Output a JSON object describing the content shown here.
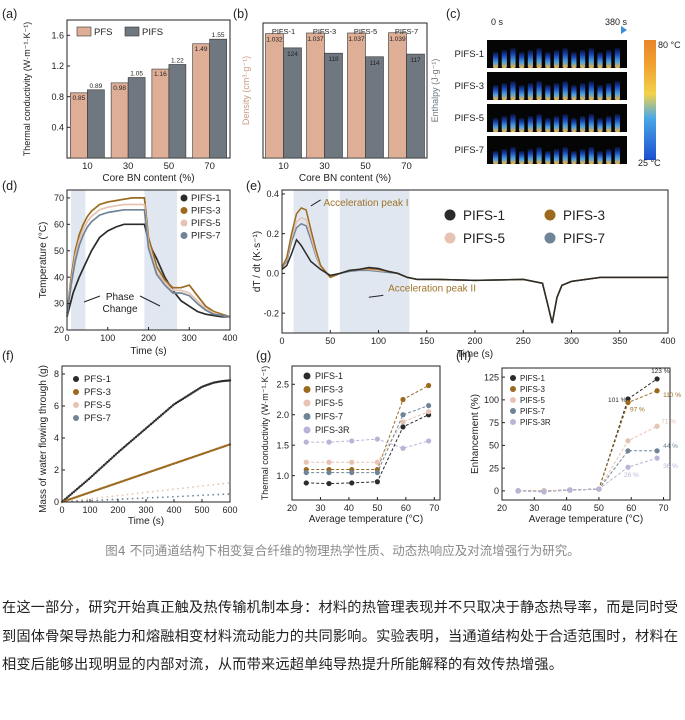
{
  "figure": {
    "caption": "图4 不同通道结构下相变复合纤维的物理热学性质、动态热响应及对流增强行为研究。",
    "colors": {
      "pfs_bar": "#dfae96",
      "pifs_bar": "#6f7880",
      "pifs1": "#2b2b2b",
      "pifs3": "#9b6a1e",
      "pifs5": "#e6c3b2",
      "pifs7": "#6f8597",
      "pifs3r": "#b7b6d8",
      "highlight": "#c6d3e6"
    }
  },
  "chart_data": [
    {
      "panel": "a",
      "type": "bar",
      "panel_label": "(a)",
      "xlabel": "Core BN content (%)",
      "ylabel": "Thermal conductivity (W·m⁻¹·K⁻¹)",
      "categories": [
        "10",
        "30",
        "50",
        "70"
      ],
      "ylim": [
        0,
        1.8
      ],
      "yticks": [
        "0.4",
        "0.8",
        "1.2",
        "1.6"
      ],
      "series": [
        {
          "name": "PFS",
          "values": [
            0.85,
            0.98,
            1.16,
            1.49
          ],
          "labels": [
            "0.85",
            "0.98",
            "1.16",
            "1.49"
          ]
        },
        {
          "name": "PIFS",
          "values": [
            0.89,
            1.05,
            1.22,
            1.55
          ],
          "labels": [
            "0.89",
            "1.05",
            "1.22",
            "1.55"
          ]
        }
      ]
    },
    {
      "panel": "b",
      "type": "bar",
      "panel_label": "(b)",
      "xlabel": "Core BN content (%)",
      "ylabel_left": "Density (cm³·g⁻¹)",
      "ylabel_right": "Enthalpy (J·g⁻¹)",
      "categories": [
        "10",
        "30",
        "50",
        "70"
      ],
      "group_labels": [
        "PIFS-1",
        "PIFS-3",
        "PIFS-5",
        "PIFS-7"
      ],
      "series": [
        {
          "name": "Density",
          "values": [
            1.032,
            1.037,
            1.037,
            1.039
          ],
          "labels": [
            "1.032",
            "1.037",
            "1.037",
            "1.039"
          ]
        },
        {
          "name": "Enthalpy",
          "values": [
            124,
            118,
            114,
            117
          ],
          "labels": [
            "124",
            "118",
            "114",
            "117"
          ]
        }
      ]
    },
    {
      "panel": "c",
      "type": "heatmap",
      "panel_label": "(c)",
      "time_start": "0 s",
      "time_end": "380 s",
      "rows": [
        "PIFS-1",
        "PIFS-3",
        "PIFS-5",
        "PIFS-7"
      ],
      "colorbar_max": "80 °C",
      "colorbar_min": "25 °C"
    },
    {
      "panel": "d",
      "type": "line",
      "panel_label": "(d)",
      "xlabel": "Time (s)",
      "ylabel": "Temperature (°C)",
      "xlim": [
        0,
        400
      ],
      "ylim": [
        20,
        73
      ],
      "xticks": [
        "0",
        "100",
        "200",
        "300",
        "400"
      ],
      "yticks": [
        "20",
        "30",
        "40",
        "50",
        "60",
        "70"
      ],
      "annotation": "Phase Change",
      "legend": [
        "PIFS-1",
        "PIFS-3",
        "PIFS-5",
        "PIFS-7"
      ],
      "series": [
        {
          "name": "PIFS-1",
          "x": [
            0,
            15,
            30,
            45,
            60,
            80,
            100,
            120,
            140,
            160,
            180,
            190,
            200,
            210,
            220,
            240,
            260,
            280,
            300,
            320,
            340,
            360,
            380,
            400
          ],
          "y": [
            25,
            34,
            40,
            45,
            50,
            55,
            57.5,
            59,
            60,
            60,
            60,
            60,
            54,
            50,
            47,
            40,
            35,
            31,
            29,
            27,
            26,
            25.5,
            25,
            25
          ]
        },
        {
          "name": "PIFS-3",
          "x": [
            0,
            10,
            20,
            30,
            40,
            50,
            60,
            80,
            100,
            120,
            140,
            160,
            170,
            180,
            190,
            200,
            220,
            240,
            260,
            280,
            300,
            320,
            340,
            360,
            380,
            400
          ],
          "y": [
            26,
            40,
            50,
            56,
            60,
            63,
            65,
            67.5,
            68.5,
            69,
            69.5,
            70,
            70,
            70,
            70,
            55,
            44,
            39,
            36,
            36,
            37,
            33,
            29,
            27,
            26,
            25
          ]
        },
        {
          "name": "PIFS-5",
          "x": [
            0,
            10,
            20,
            30,
            40,
            50,
            60,
            80,
            100,
            120,
            140,
            160,
            170,
            180,
            190,
            200,
            220,
            240,
            260,
            280,
            300,
            320,
            340,
            360,
            380,
            400
          ],
          "y": [
            26,
            38,
            48,
            54,
            58,
            61,
            63,
            65.5,
            66.5,
            67,
            67.5,
            67.5,
            67.5,
            67.5,
            67.5,
            53,
            42,
            38,
            35,
            35,
            34,
            31,
            28,
            26.5,
            25.5,
            25
          ]
        },
        {
          "name": "PIFS-7",
          "x": [
            0,
            10,
            20,
            30,
            40,
            50,
            60,
            80,
            100,
            120,
            140,
            160,
            170,
            180,
            190,
            200,
            220,
            240,
            260,
            280,
            300,
            320,
            340,
            360,
            380,
            400
          ],
          "y": [
            25,
            37,
            46,
            52,
            56,
            59,
            61,
            63.5,
            64.5,
            65,
            65.5,
            65.5,
            65.5,
            65.5,
            65.5,
            51,
            41,
            37,
            34,
            34,
            33,
            30,
            27.5,
            26,
            25.5,
            25
          ]
        }
      ]
    },
    {
      "panel": "e",
      "type": "line",
      "panel_label": "(e)",
      "xlabel": "Time (s)",
      "ylabel": "dT / dt (K·s⁻¹)",
      "xlim": [
        0,
        400
      ],
      "ylim": [
        -0.3,
        0.42
      ],
      "xticks": [
        "0",
        "50",
        "100",
        "150",
        "200",
        "250",
        "300",
        "350",
        "400"
      ],
      "yticks": [
        "-0.2",
        "0.0",
        "0.2",
        "0.4"
      ],
      "annotations": [
        "Acceleration peak I",
        "Acceleration peak II"
      ],
      "legend": [
        "PIFS-1",
        "PIFS-3",
        "PIFS-5",
        "PIFS-7"
      ],
      "series": [
        {
          "name": "PIFS-1",
          "x": [
            0,
            5,
            10,
            15,
            20,
            25,
            30,
            40,
            50,
            60,
            70,
            80,
            90,
            100,
            110,
            120,
            130,
            140,
            160,
            200,
            250,
            270,
            275,
            280,
            285,
            290,
            300,
            330,
            360,
            400
          ],
          "y": [
            0.02,
            0.04,
            0.1,
            0.17,
            0.14,
            0.1,
            0.06,
            0.02,
            -0.01,
            0.0,
            0.015,
            0.02,
            0.03,
            0.025,
            0.01,
            0.0,
            -0.02,
            -0.03,
            -0.03,
            -0.035,
            -0.03,
            -0.05,
            -0.15,
            -0.25,
            -0.12,
            -0.06,
            -0.04,
            -0.02,
            -0.02,
            -0.02
          ]
        },
        {
          "name": "PIFS-3",
          "x": [
            0,
            5,
            10,
            15,
            20,
            25,
            30,
            35,
            40,
            50,
            60,
            70,
            80,
            90,
            100,
            110,
            120,
            130,
            140,
            160,
            200,
            250,
            270,
            275,
            280,
            285,
            290,
            300,
            330,
            360,
            400
          ],
          "y": [
            0.03,
            0.08,
            0.2,
            0.3,
            0.33,
            0.32,
            0.22,
            0.12,
            0.04,
            -0.02,
            0.0,
            0.015,
            0.02,
            0.025,
            0.02,
            0.01,
            0.0,
            -0.02,
            -0.03,
            -0.03,
            -0.035,
            -0.03,
            -0.05,
            -0.15,
            -0.25,
            -0.12,
            -0.06,
            -0.04,
            -0.02,
            -0.02,
            -0.02
          ]
        },
        {
          "name": "PIFS-5",
          "x": [
            0,
            5,
            10,
            15,
            20,
            25,
            30,
            35,
            40,
            50,
            60,
            70,
            80,
            90,
            100,
            110,
            120,
            130,
            140,
            160,
            200,
            250,
            270,
            275,
            280,
            285,
            290,
            300,
            330,
            360,
            400
          ],
          "y": [
            0.03,
            0.07,
            0.18,
            0.26,
            0.28,
            0.27,
            0.19,
            0.1,
            0.03,
            -0.02,
            0.0,
            0.015,
            0.02,
            0.02,
            0.015,
            0.01,
            0.0,
            -0.02,
            -0.03,
            -0.03,
            -0.035,
            -0.03,
            -0.05,
            -0.15,
            -0.25,
            -0.12,
            -0.06,
            -0.04,
            -0.02,
            -0.02,
            -0.02
          ]
        },
        {
          "name": "PIFS-7",
          "x": [
            0,
            5,
            10,
            15,
            20,
            25,
            30,
            35,
            40,
            50,
            60,
            70,
            80,
            90,
            100,
            110,
            120,
            130,
            140,
            160,
            200,
            250,
            270,
            275,
            280,
            285,
            290,
            300,
            330,
            360,
            400
          ],
          "y": [
            0.03,
            0.06,
            0.16,
            0.23,
            0.25,
            0.24,
            0.17,
            0.09,
            0.03,
            -0.02,
            0.0,
            0.01,
            0.015,
            0.015,
            0.01,
            0.005,
            0.0,
            -0.02,
            -0.03,
            -0.03,
            -0.035,
            -0.03,
            -0.05,
            -0.15,
            -0.25,
            -0.12,
            -0.06,
            -0.04,
            -0.02,
            -0.02,
            -0.02
          ]
        }
      ]
    },
    {
      "panel": "f",
      "type": "scatter",
      "panel_label": "(f)",
      "xlabel": "Time (s)",
      "ylabel": "Mass of water flowing through (g)",
      "xlim": [
        0,
        600
      ],
      "ylim": [
        0,
        8.5
      ],
      "xticks": [
        "0",
        "100",
        "200",
        "300",
        "400",
        "500",
        "600"
      ],
      "yticks": [
        "0",
        "2",
        "4",
        "6",
        "8"
      ],
      "legend": [
        "PFS-1",
        "PFS-3",
        "PFS-5",
        "PFS-7"
      ],
      "series": [
        {
          "name": "PFS-1",
          "x": [
            0,
            100,
            200,
            300,
            400,
            500,
            540,
            570,
            600
          ],
          "y": [
            0,
            1.5,
            3.1,
            4.6,
            6.1,
            7.2,
            7.45,
            7.55,
            7.6
          ]
        },
        {
          "name": "PFS-3",
          "x": [
            0,
            100,
            200,
            300,
            400,
            500,
            600
          ],
          "y": [
            0,
            0.6,
            1.2,
            1.8,
            2.4,
            3.0,
            3.6
          ]
        },
        {
          "name": "PFS-5",
          "x": [
            0,
            100,
            200,
            300,
            400,
            500,
            600
          ],
          "y": [
            0,
            0.2,
            0.4,
            0.6,
            0.8,
            1.0,
            1.2
          ]
        },
        {
          "name": "PFS-7",
          "x": [
            0,
            100,
            200,
            300,
            400,
            500,
            600
          ],
          "y": [
            0,
            0.08,
            0.17,
            0.25,
            0.33,
            0.42,
            0.5
          ]
        }
      ]
    },
    {
      "panel": "g",
      "type": "line",
      "panel_label": "(g)",
      "xlabel": "Average temperature (°C)",
      "ylabel": "Thermal conductivity (W·m⁻¹·K⁻¹)",
      "xlim": [
        20,
        72
      ],
      "ylim": [
        0.6,
        2.8
      ],
      "xticks": [
        "20",
        "30",
        "40",
        "50",
        "60",
        "70"
      ],
      "yticks": [
        "1.0",
        "1.5",
        "2.0",
        "2.5"
      ],
      "legend": [
        "PIFS-1",
        "PIFS-3",
        "PIFS-5",
        "PIFS-7",
        "PIFS-3R"
      ],
      "series": [
        {
          "name": "PIFS-1",
          "x": [
            25,
            33,
            41,
            50,
            59,
            68
          ],
          "y": [
            0.88,
            0.87,
            0.88,
            0.9,
            1.8,
            2.0
          ]
        },
        {
          "name": "PIFS-3",
          "x": [
            25,
            33,
            41,
            50,
            59,
            68
          ],
          "y": [
            1.1,
            1.1,
            1.1,
            1.1,
            2.25,
            2.48
          ]
        },
        {
          "name": "PIFS-5",
          "x": [
            25,
            33,
            41,
            50,
            59,
            68
          ],
          "y": [
            1.22,
            1.22,
            1.22,
            1.22,
            1.88,
            2.05
          ]
        },
        {
          "name": "PIFS-7",
          "x": [
            25,
            33,
            41,
            50,
            59,
            68
          ],
          "y": [
            1.05,
            1.05,
            1.05,
            1.05,
            2.0,
            2.15
          ]
        },
        {
          "name": "PIFS-3R",
          "x": [
            25,
            33,
            41,
            50,
            59,
            68
          ],
          "y": [
            1.55,
            1.55,
            1.57,
            1.6,
            1.45,
            1.57
          ]
        }
      ]
    },
    {
      "panel": "h",
      "type": "line",
      "panel_label": "(h)",
      "xlabel": "Average temperature (°C)",
      "ylabel": "Enhancement (%)",
      "xlim": [
        20,
        72
      ],
      "ylim": [
        -10,
        135
      ],
      "xticks": [
        "20",
        "30",
        "40",
        "50",
        "60",
        "70"
      ],
      "yticks": [
        "0",
        "25",
        "50",
        "75",
        "100",
        "125"
      ],
      "legend": [
        "PIFS-1",
        "PIFS-3",
        "PIFS-5",
        "PIFS-7",
        "PIFS-3R"
      ],
      "series": [
        {
          "name": "PIFS-1",
          "x": [
            25,
            33,
            41,
            50,
            59,
            68
          ],
          "y": [
            0,
            0,
            1,
            2,
            101,
            123
          ]
        },
        {
          "name": "PIFS-3",
          "x": [
            25,
            33,
            41,
            50,
            59,
            68
          ],
          "y": [
            0,
            0,
            1,
            2,
            97,
            110
          ]
        },
        {
          "name": "PIFS-5",
          "x": [
            25,
            33,
            41,
            50,
            59,
            68
          ],
          "y": [
            0,
            0,
            1,
            2,
            55,
            71
          ]
        },
        {
          "name": "PIFS-7",
          "x": [
            25,
            33,
            41,
            50,
            59,
            68
          ],
          "y": [
            0,
            -1,
            1,
            2,
            44,
            44
          ]
        },
        {
          "name": "PIFS-3R",
          "x": [
            25,
            33,
            41,
            50,
            59,
            68
          ],
          "y": [
            0,
            -1,
            1,
            2,
            26,
            36
          ]
        }
      ],
      "data_labels": [
        {
          "text": "123 %",
          "x": 68,
          "y": 123,
          "series": "PIFS-1"
        },
        {
          "text": "101 %",
          "x": 59,
          "y": 101,
          "series": "PIFS-1"
        },
        {
          "text": "110 %",
          "x": 68,
          "y": 110,
          "series": "PIFS-3"
        },
        {
          "text": "97 %",
          "x": 59,
          "y": 97,
          "series": "PIFS-3"
        },
        {
          "text": "71 %",
          "x": 68,
          "y": 71,
          "series": "PIFS-5"
        },
        {
          "text": "44 %",
          "x": 68,
          "y": 44,
          "series": "PIFS-7"
        },
        {
          "text": "26 %",
          "x": 59,
          "y": 26,
          "series": "PIFS-3R"
        },
        {
          "text": "36 %",
          "x": 68,
          "y": 36,
          "series": "PIFS-3R"
        }
      ]
    }
  ],
  "body": {
    "paragraph": "在这一部分，研究开始真正触及热传输机制本身：材料的热管理表现并不只取决于静态热导率，而是同时受到固体骨架导热能力和熔融相变材料流动能力的共同影响。实验表明，当通道结构处于合适范围时，材料在相变后能够出现明显的内部对流，从而带来远超单纯导热提升所能解释的有效传热增强。"
  }
}
